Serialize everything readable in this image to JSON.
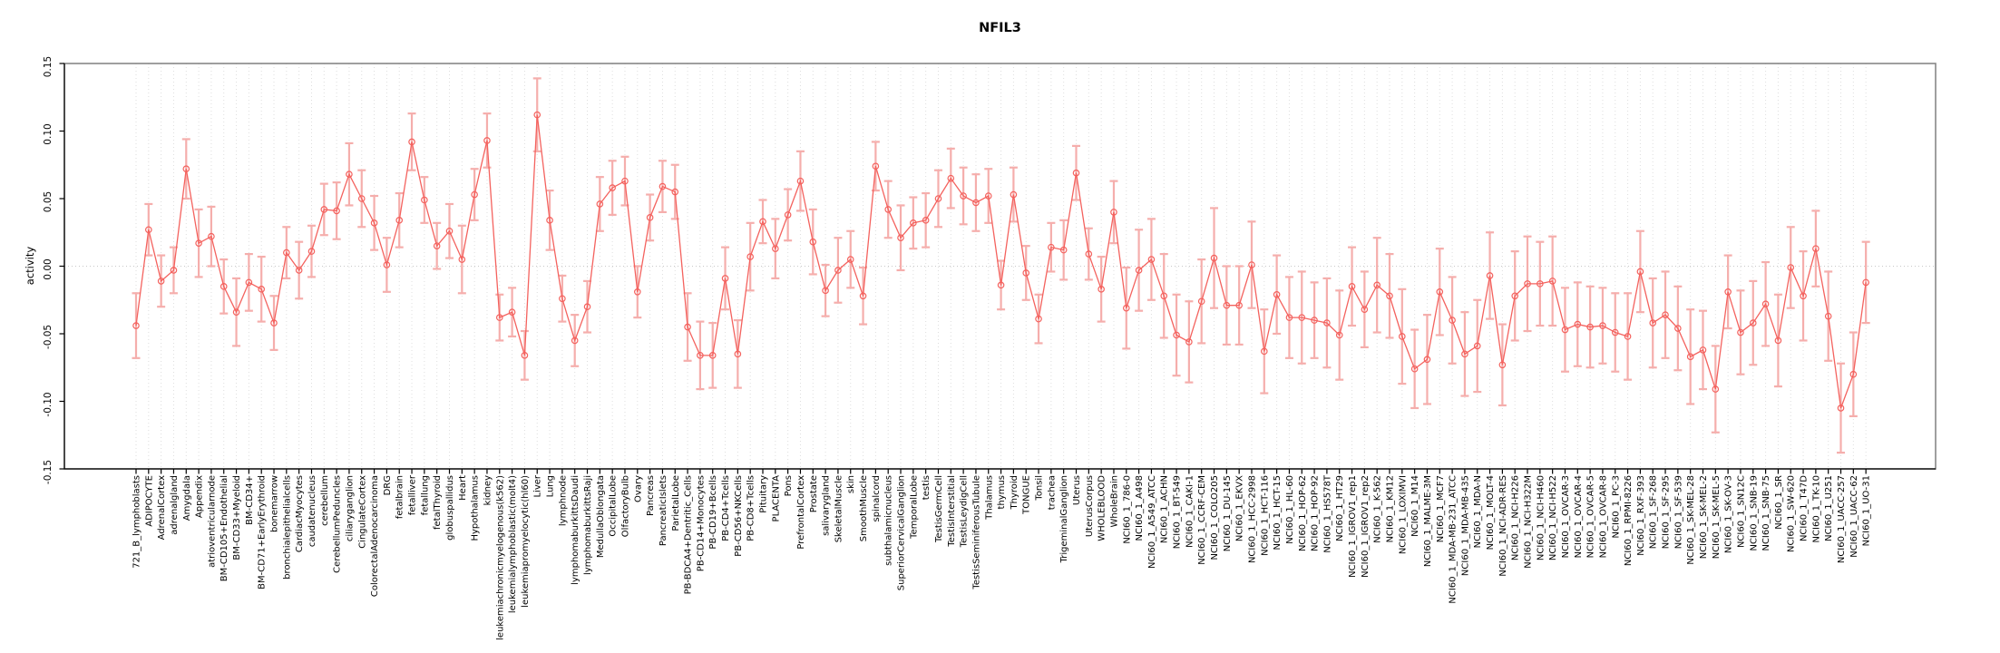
{
  "chart_data": {
    "type": "line",
    "title": "NFIL3",
    "ylabel": "activity",
    "xlabel": "",
    "ylim": [
      -0.15,
      0.15
    ],
    "ytick_labels": [
      "-0.15",
      "-0.10",
      "-0.05",
      "0.00",
      "0.05",
      "0.10",
      "0.15"
    ],
    "ytick_values": [
      -0.15,
      -0.1,
      -0.05,
      0.0,
      0.05,
      0.1,
      0.15
    ],
    "grid": "vertical-dotted-per-category, dotted-zero-line",
    "legend": "none",
    "marker": "open-circle-with-error-bars",
    "categories": [
      "721_B_lymphoblasts",
      "ADIPOCYTE",
      "AdrenalCortex",
      "adrenalgland",
      "Amygdala",
      "Appendix",
      "atrioventricularnode",
      "BM-CD105+Endothelial",
      "BM-CD33+Myeloid",
      "BM-CD34+",
      "BM-CD71+EarlyErythroid",
      "bonemarrow",
      "bronchialepithelialcells",
      "CardiacMyocytes",
      "caudatenucleus",
      "cerebellum",
      "CerebellumPeduncles",
      "ciliaryganglion",
      "CingulateCortex",
      "ColorectalAdenocarcinoma",
      "DRG",
      "fetalbrain",
      "fetalliver",
      "fetallung",
      "fetalThyroid",
      "globuspallidus",
      "Heart",
      "Hypothalamus",
      "kidney",
      "leukemiachronicmyelogenous(k562)",
      "leukemialymphoblastic(molt4)",
      "leukemiapromyelocytic(hl60)",
      "Liver",
      "Lung",
      "lymphnode",
      "lymphomaburkittsDaudi",
      "lymphomaburkittsRaji",
      "MedullaOblongata",
      "OccipitalLobe",
      "OlfactoryBulb",
      "Ovary",
      "Pancreas",
      "PancreaticIslets",
      "ParietalLobe",
      "PB-BDCA4+Dentritic_Cells",
      "PB-CD14+Monocytes",
      "PB-CD19+Bcells",
      "PB-CD4+Tcells",
      "PB-CD56+NKCells",
      "PB-CD8+Tcells",
      "Pituitary",
      "PLACENTA",
      "Pons",
      "PrefrontalCortex",
      "Prostate",
      "salivarygland",
      "SkeletalMuscle",
      "skin",
      "SmoothMuscle",
      "spinalcord",
      "subthalamicnucleus",
      "SuperiorCervicalGanglion",
      "TemporalLobe",
      "testis",
      "TestisGermCell",
      "TestisInterstitial",
      "TestisLeydigCell",
      "TestisSeminiferousTubule",
      "Thalamus",
      "thymus",
      "Thyroid",
      "TONGUE",
      "Tonsil",
      "trachea",
      "TrigeminalGanglion",
      "Uterus",
      "UterusCorpus",
      "WHOLEBLOOD",
      "WholeBrain",
      "NCI60_1_786-0",
      "NCI60_1_A498",
      "NCI60_1_A549_ATCC",
      "NCI60_1_ACHN",
      "NCI60_1_BT-549",
      "NCI60_1_CAKI-1",
      "NCI60_1_CCRF-CEM",
      "NCI60_1_COLO205",
      "NCI60_1_DU-145",
      "NCI60_1_EKVX",
      "NCI60_1_HCC-2998",
      "NCI60_1_HCT-116",
      "NCI60_1_HCT-15",
      "NCI60_1_HL-60",
      "NCI60_1_HOP-62",
      "NCI60_1_HOP-92",
      "NCI60_1_HS578T",
      "NCI60_1_HT29",
      "NCI60_1_IGROV1_rep1",
      "NCI60_1_IGROV1_rep2",
      "NCI60_1_K-562",
      "NCI60_1_KM12",
      "NCI60_1_LOXIMVI",
      "NCI60_1_M14",
      "NCI60_1_MALME-3M",
      "NCI60_1_MCF7",
      "NCI60_1_MDA-MB-231_ATCC",
      "NCI60_1_MDA-MB-435",
      "NCI60_1_MDA-N",
      "NCI60_1_MOLT-4",
      "NCI60_1_NCI-ADR-RES",
      "NCI60_1_NCI-H226",
      "NCI60_1_NCI-H322M",
      "NCI60_1_NCI-H460",
      "NCI60_1_NCI-H522",
      "NCI60_1_OVCAR-3",
      "NCI60_1_OVCAR-4",
      "NCI60_1_OVCAR-5",
      "NCI60_1_OVCAR-8",
      "NCI60_1_PC-3",
      "NCI60_1_RPMI-8226",
      "NCI60_1_RXF-393",
      "NCI60_1_SF-268",
      "NCI60_1_SF-295",
      "NCI60_1_SF-539",
      "NCI60_1_SK-MEL-28",
      "NCI60_1_SK-MEL-2",
      "NCI60_1_SK-MEL-5",
      "NCI60_1_SK-OV-3",
      "NCI60_1_SN12C",
      "NCI60_1_SNB-19",
      "NCI60_1_SNB-75",
      "NCI60_1_SR",
      "NCI60_1_SW-620",
      "NCI60_1_T47D",
      "NCI60_1_TK-10",
      "NCI60_1_U251",
      "NCI60_1_UACC-257",
      "NCI60_1_UACC-62",
      "NCI60_1_UO-31"
    ],
    "values": [
      -0.044,
      0.027,
      -0.011,
      -0.003,
      0.072,
      0.017,
      0.022,
      -0.015,
      -0.034,
      -0.012,
      -0.017,
      -0.042,
      0.01,
      -0.003,
      0.011,
      0.042,
      0.041,
      0.068,
      0.05,
      0.032,
      0.001,
      0.034,
      0.092,
      0.049,
      0.015,
      0.026,
      0.005,
      0.053,
      0.093,
      -0.038,
      -0.034,
      -0.066,
      0.112,
      0.034,
      -0.024,
      -0.055,
      -0.03,
      0.046,
      0.058,
      0.063,
      -0.019,
      0.036,
      0.059,
      0.055,
      -0.045,
      -0.066,
      -0.066,
      -0.009,
      -0.065,
      0.007,
      0.033,
      0.013,
      0.038,
      0.063,
      0.018,
      -0.018,
      -0.003,
      0.005,
      -0.022,
      0.074,
      0.042,
      0.021,
      0.032,
      0.034,
      0.05,
      0.065,
      0.052,
      0.047,
      0.052,
      -0.014,
      0.053,
      -0.005,
      -0.039,
      0.014,
      0.012,
      0.069,
      0.009,
      -0.017,
      0.04,
      -0.031,
      -0.003,
      0.005,
      -0.022,
      -0.051,
      -0.056,
      -0.026,
      0.006,
      -0.029,
      -0.029,
      0.001,
      -0.063,
      -0.021,
      -0.038,
      -0.038,
      -0.04,
      -0.042,
      -0.051,
      -0.015,
      -0.032,
      -0.014,
      -0.022,
      -0.052,
      -0.076,
      -0.069,
      -0.019,
      -0.04,
      -0.065,
      -0.059,
      -0.007,
      -0.073,
      -0.022,
      -0.013,
      -0.013,
      -0.011,
      -0.047,
      -0.043,
      -0.045,
      -0.044,
      -0.049,
      -0.052,
      -0.004,
      -0.042,
      -0.036,
      -0.046,
      -0.067,
      -0.062,
      -0.091,
      -0.019,
      -0.049,
      -0.042,
      -0.028,
      -0.055,
      -0.001,
      -0.022,
      0.013,
      -0.037,
      -0.105,
      -0.08,
      -0.012
    ],
    "errors": [
      0.024,
      0.019,
      0.019,
      0.017,
      0.022,
      0.025,
      0.022,
      0.02,
      0.025,
      0.021,
      0.024,
      0.02,
      0.019,
      0.021,
      0.019,
      0.019,
      0.021,
      0.023,
      0.021,
      0.02,
      0.02,
      0.02,
      0.021,
      0.017,
      0.017,
      0.02,
      0.025,
      0.019,
      0.02,
      0.017,
      0.018,
      0.018,
      0.027,
      0.022,
      0.017,
      0.019,
      0.019,
      0.02,
      0.02,
      0.018,
      0.019,
      0.017,
      0.019,
      0.02,
      0.025,
      0.025,
      0.024,
      0.023,
      0.025,
      0.025,
      0.016,
      0.022,
      0.019,
      0.022,
      0.024,
      0.019,
      0.024,
      0.021,
      0.021,
      0.018,
      0.021,
      0.024,
      0.019,
      0.02,
      0.021,
      0.022,
      0.021,
      0.021,
      0.02,
      0.018,
      0.02,
      0.02,
      0.018,
      0.018,
      0.022,
      0.02,
      0.019,
      0.024,
      0.023,
      0.03,
      0.03,
      0.03,
      0.031,
      0.03,
      0.03,
      0.031,
      0.037,
      0.029,
      0.029,
      0.032,
      0.031,
      0.029,
      0.03,
      0.034,
      0.028,
      0.033,
      0.033,
      0.029,
      0.028,
      0.035,
      0.031,
      0.035,
      0.029,
      0.033,
      0.032,
      0.032,
      0.031,
      0.034,
      0.032,
      0.03,
      0.033,
      0.035,
      0.031,
      0.033,
      0.031,
      0.031,
      0.03,
      0.028,
      0.029,
      0.032,
      0.03,
      0.033,
      0.032,
      0.031,
      0.035,
      0.029,
      0.032,
      0.027,
      0.031,
      0.031,
      0.031,
      0.034,
      0.03,
      0.033,
      0.028,
      0.033,
      0.033,
      0.031,
      0.03
    ],
    "colors": {
      "line": "#f4625e",
      "point": "#f4625e",
      "error_bar": "#f5aeac",
      "grid": "#dedede",
      "zero_line": "#c8c8c8",
      "box": "#878787",
      "axis": "#000000"
    }
  }
}
